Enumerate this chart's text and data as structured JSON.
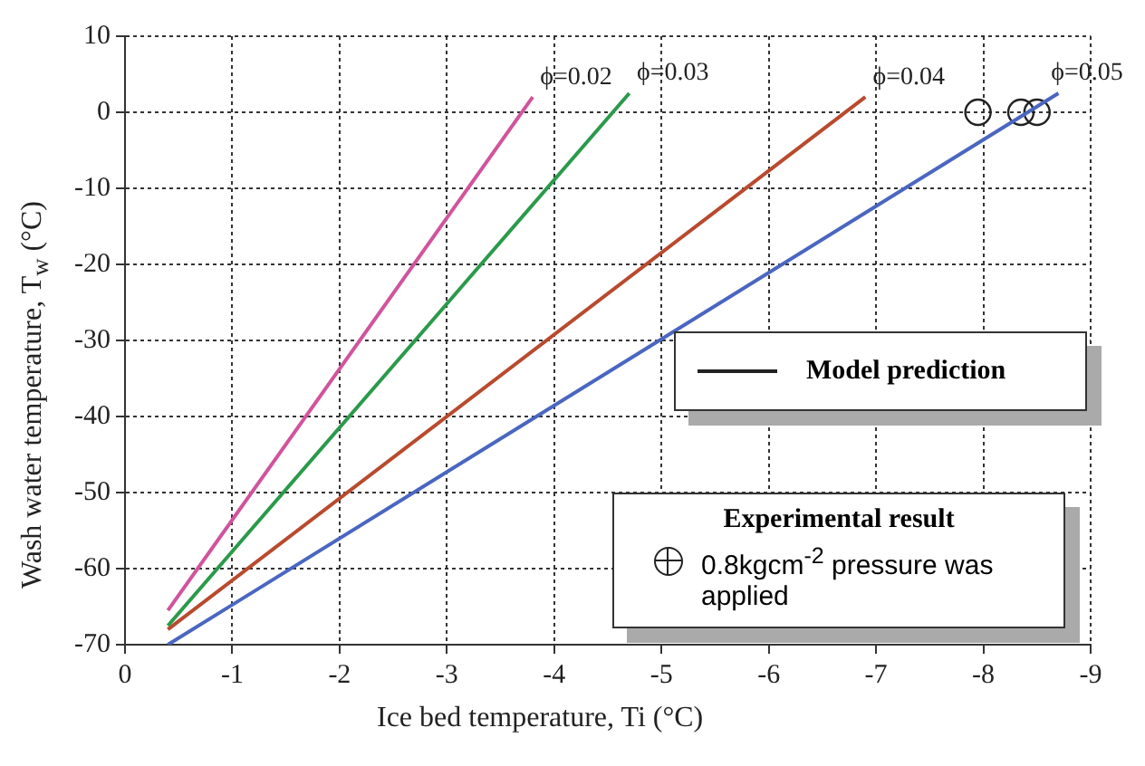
{
  "chart_data": {
    "type": "line",
    "xlabel": "Ice bed temperature, Ti (°C)",
    "ylabel": "Wash water temperature, T$_{w}$ (°C)",
    "xlim": [
      0,
      -9
    ],
    "xticks": [
      0,
      -1,
      -2,
      -3,
      -4,
      -5,
      -6,
      -7,
      -8,
      -9
    ],
    "ylim": [
      -70,
      10
    ],
    "yticks": [
      -70,
      -60,
      -50,
      -40,
      -30,
      -20,
      -10,
      0,
      10
    ],
    "grid": true,
    "legend": "top right",
    "line_style": "solid",
    "annotations": [
      "Model prediction",
      "Experimental result"
    ],
    "series": [
      {
        "name": "ϕ=0.02",
        "color": "#d0549c",
        "x": [
          -0.4,
          -3.8
        ],
        "values": [
          -65.5,
          2
        ]
      },
      {
        "name": "ϕ=0.03",
        "color": "#2a9a4a",
        "x": [
          -0.4,
          -4.7
        ],
        "values": [
          -67.5,
          2.5
        ]
      },
      {
        "name": "ϕ=0.04",
        "color": "#b84a2e",
        "x": [
          -0.4,
          -6.9
        ],
        "values": [
          -68,
          2
        ]
      },
      {
        "name": "ϕ=0.05",
        "color": "#4a66c0",
        "x": [
          -0.4,
          -8.7
        ],
        "values": [
          -70,
          2.5
        ]
      },
      {
        "type": "scatter",
        "name": "0.8kgcm$^{-2}$ pressure was applied",
        "color": "#222222",
        "marker": "circle",
        "x": [
          -7.95,
          -8.35,
          -8.5
        ],
        "values": [
          0,
          0,
          0
        ]
      }
    ]
  }
}
